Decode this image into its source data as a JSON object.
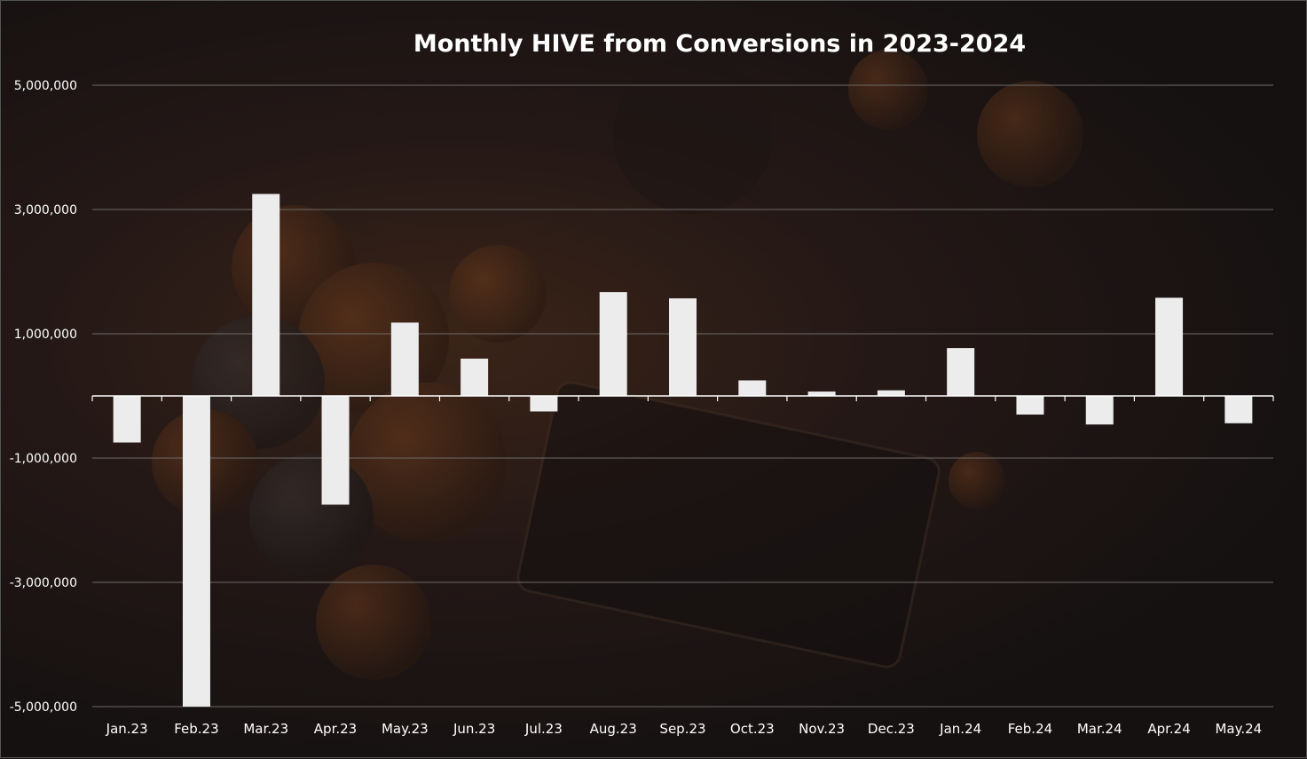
{
  "chart_data": {
    "type": "bar",
    "title": "Monthly HIVE from Conversions in 2023-2024",
    "xlabel": "",
    "ylabel": "",
    "categories": [
      "Jan.23",
      "Feb.23",
      "Mar.23",
      "Apr.23",
      "May.23",
      "Jun.23",
      "Jul.23",
      "Aug.23",
      "Sep.23",
      "Oct.23",
      "Nov.23",
      "Dec.23",
      "Jan.24",
      "Feb.24",
      "Mar.24",
      "Apr.24",
      "May.24"
    ],
    "values": [
      -750000,
      -5000000,
      3250000,
      -1750000,
      1180000,
      600000,
      -250000,
      1670000,
      1570000,
      250000,
      70000,
      90000,
      770000,
      -300000,
      -460000,
      1580000,
      -440000
    ],
    "ylim": [
      -5000000,
      5000000
    ],
    "yticks": [
      5000000,
      3000000,
      1000000,
      -1000000,
      -3000000,
      -5000000
    ],
    "ytick_labels": [
      "5,000,000",
      "3,000,000",
      "1,000,000",
      "-1,000,000",
      "-3,000,000",
      "-5,000,000"
    ],
    "grid": true,
    "legend": "none",
    "colors": {
      "bar": "#ececec",
      "grid": "#6e6a68",
      "axis": "#ffffff",
      "text": "#ffffff",
      "background": "#1a1414"
    }
  }
}
